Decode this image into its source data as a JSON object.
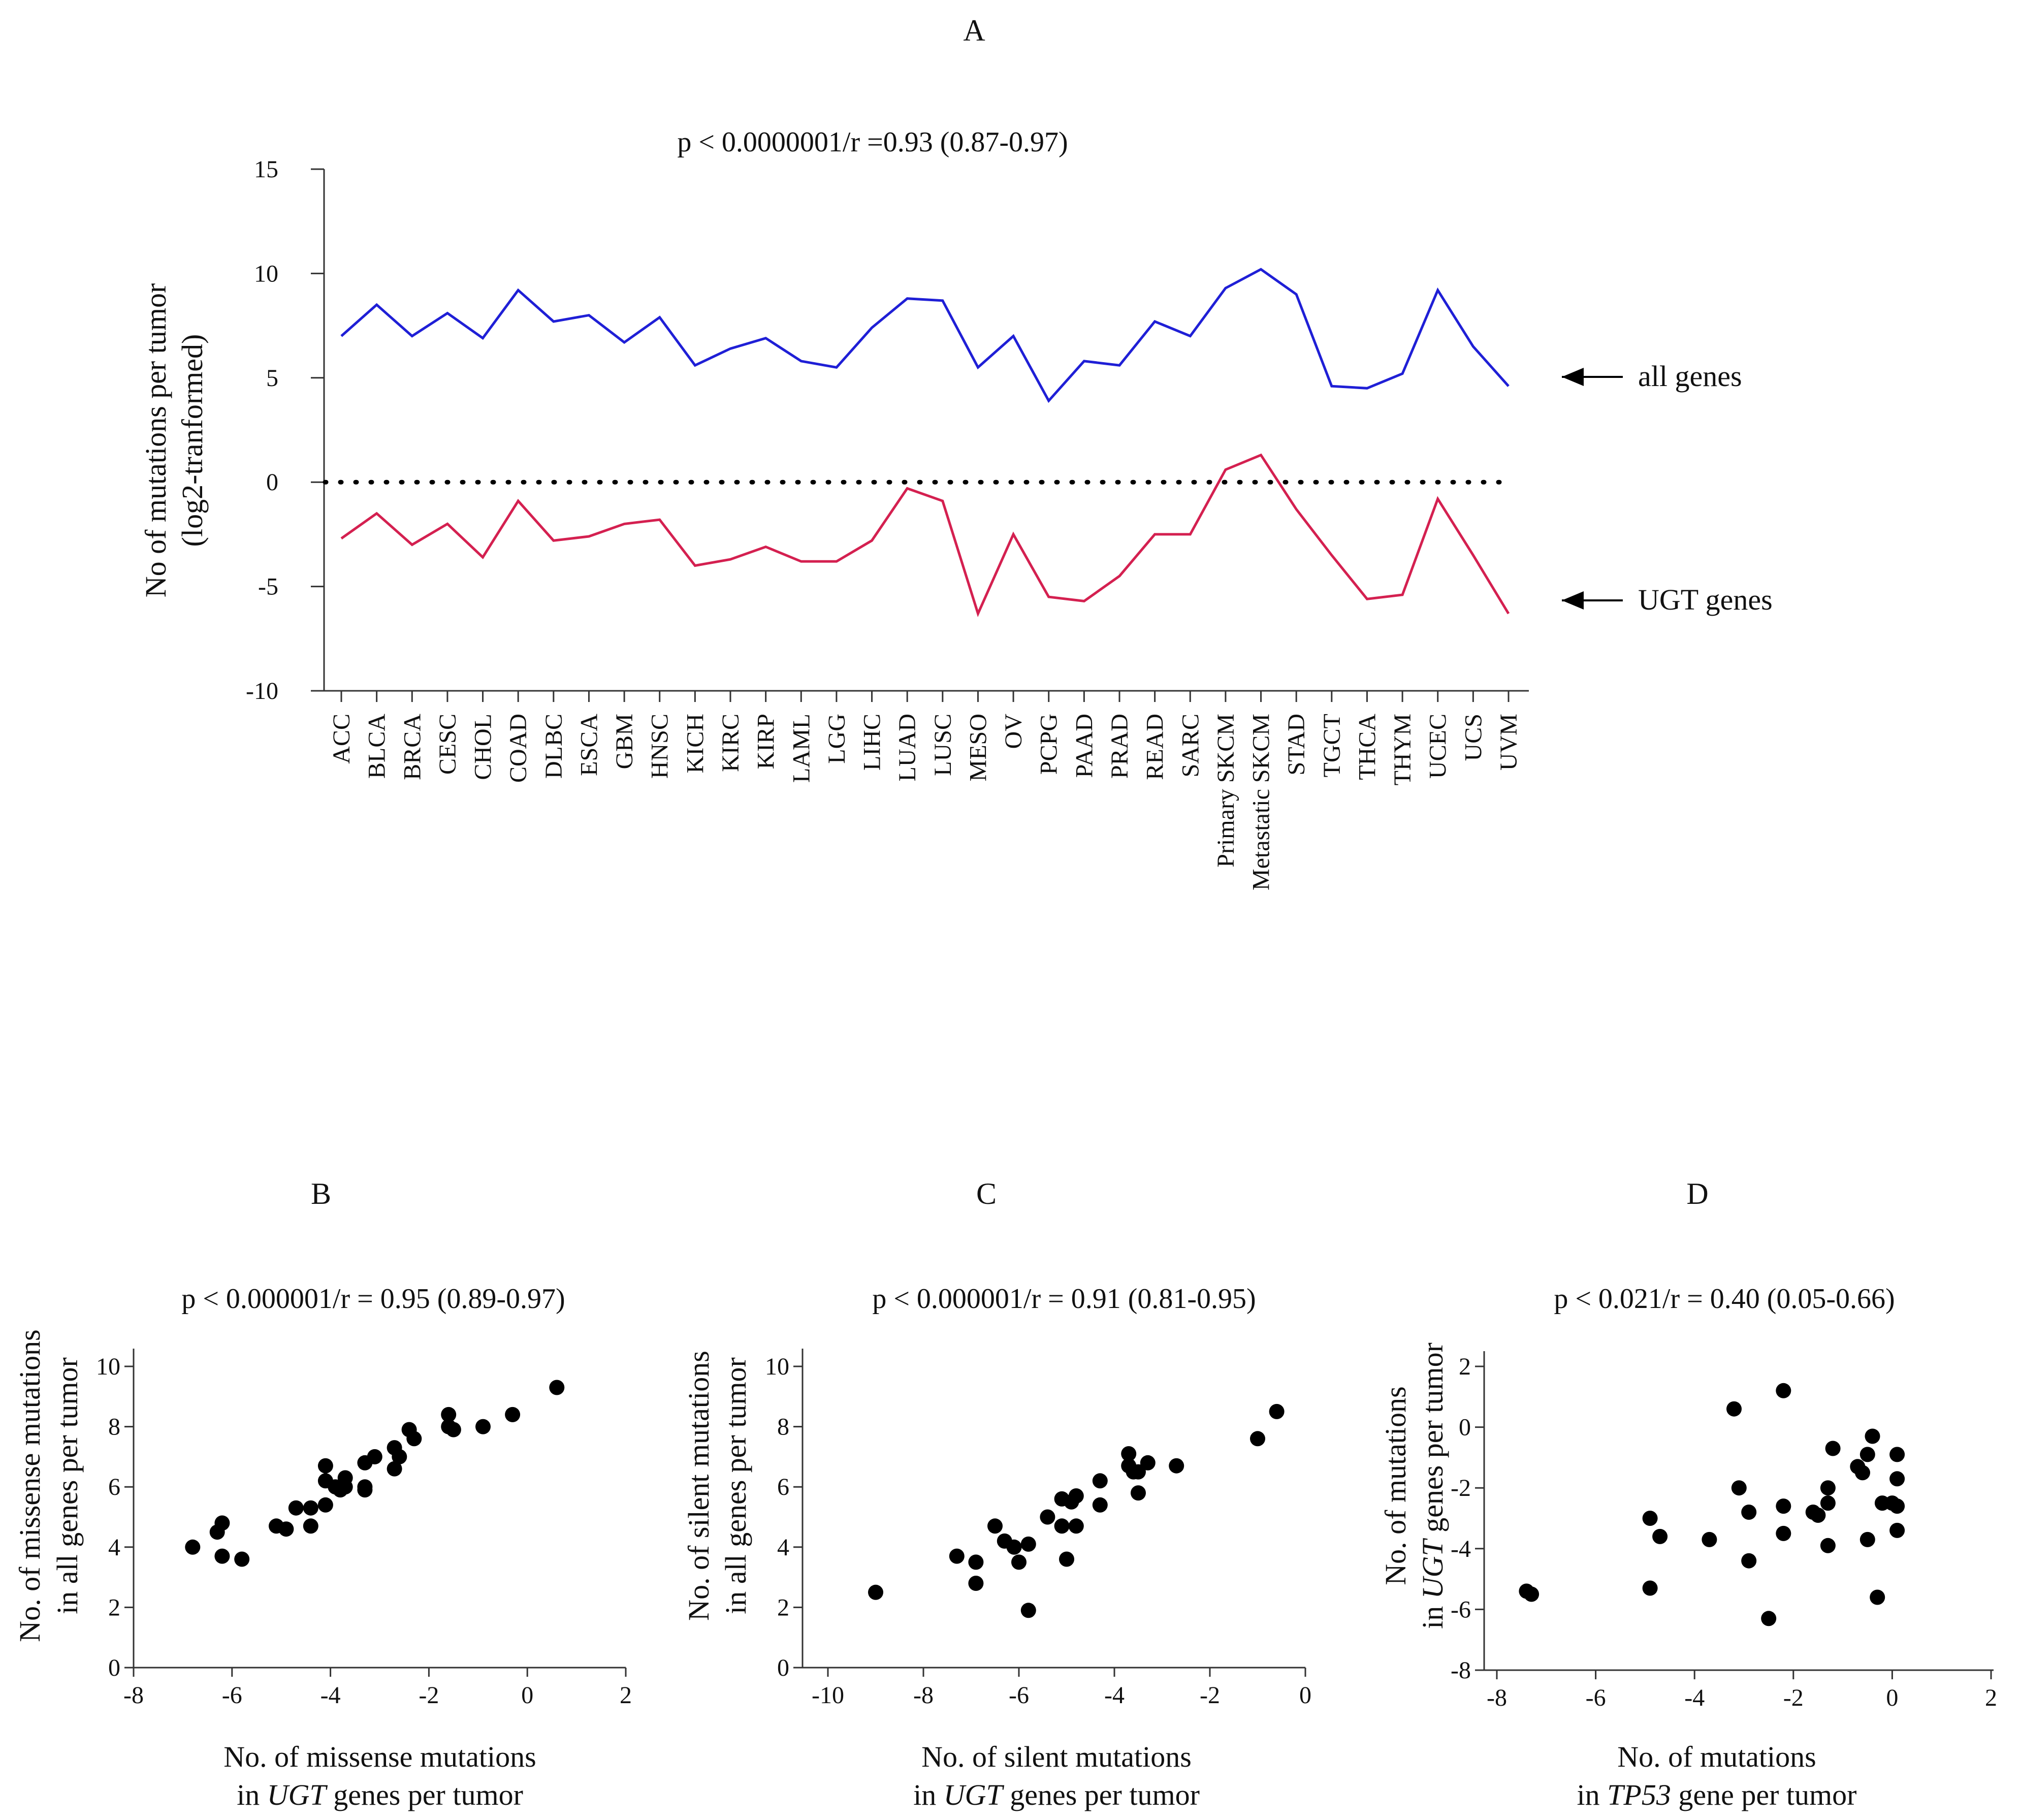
{
  "chart_data": [
    {
      "panel": "A",
      "type": "line",
      "title": "p < 0.0000001/r =0.93 (0.87-0.97)",
      "ylabel": [
        "No of mutations per tumor",
        "(log2-tranformed)"
      ],
      "ylim": [
        -10,
        15
      ],
      "yticks": [
        -10,
        -5,
        0,
        5,
        10,
        15
      ],
      "categories": [
        "ACC",
        "BLCA",
        "BRCA",
        "CESC",
        "CHOL",
        "COAD",
        "DLBC",
        "ESCA",
        "GBM",
        "HNSC",
        "KICH",
        "KIRC",
        "KIRP",
        "LAML",
        "LGG",
        "LIHC",
        "LUAD",
        "LUSC",
        "MESO",
        "OV",
        "PCPG",
        "PAAD",
        "PRAD",
        "READ",
        "SARC",
        "Primary SKCM",
        "Metastatic SKCM",
        "STAD",
        "TGCT",
        "THCA",
        "THYM",
        "UCEC",
        "UCS",
        "UVM"
      ],
      "series": [
        {
          "name": "all genes",
          "color": "#1f1fd6",
          "values": [
            7.0,
            8.5,
            7.0,
            8.1,
            6.9,
            9.2,
            7.7,
            8.0,
            6.7,
            7.9,
            5.6,
            6.4,
            6.9,
            5.8,
            5.5,
            7.4,
            8.8,
            8.7,
            5.5,
            7.0,
            3.9,
            5.8,
            5.6,
            7.7,
            7.0,
            9.3,
            10.2,
            9.0,
            4.6,
            4.5,
            5.2,
            9.2,
            6.5,
            4.6
          ]
        },
        {
          "name": "UGT genes",
          "color": "#d42050",
          "values": [
            -2.7,
            -1.5,
            -3.0,
            -2.0,
            -3.6,
            -0.9,
            -2.8,
            -2.6,
            -2.0,
            -1.8,
            -4.0,
            -3.7,
            -3.1,
            -3.8,
            -3.8,
            -2.8,
            -0.3,
            -0.9,
            -6.3,
            -2.5,
            -5.5,
            -5.7,
            -4.5,
            -2.5,
            -2.5,
            0.6,
            1.3,
            -1.3,
            -3.5,
            -5.6,
            -5.4,
            -0.8,
            -3.5,
            -6.3
          ]
        }
      ],
      "reference_line": 0,
      "annotations": [
        "all genes",
        "UGT genes"
      ]
    },
    {
      "panel": "B",
      "type": "scatter",
      "title": "p < 0.000001/r = 0.95 (0.89-0.97)",
      "xlabel": [
        "No. of missense mutations",
        "in ",
        "UGT",
        " genes per tumor"
      ],
      "ylabel": [
        "No. of missense mutations",
        "in all genes per tumor"
      ],
      "xlim": [
        -8,
        2
      ],
      "ylim": [
        0,
        10
      ],
      "xticks": [
        -8,
        -6,
        -4,
        -2,
        0,
        2
      ],
      "yticks": [
        0,
        2,
        4,
        6,
        8,
        10
      ],
      "points": [
        [
          -6.8,
          4.0
        ],
        [
          -6.3,
          4.5
        ],
        [
          -6.2,
          4.8
        ],
        [
          -6.2,
          3.7
        ],
        [
          -5.8,
          3.6
        ],
        [
          -5.1,
          4.7
        ],
        [
          -4.9,
          4.6
        ],
        [
          -4.7,
          5.3
        ],
        [
          -4.4,
          5.3
        ],
        [
          -4.4,
          4.7
        ],
        [
          -4.1,
          6.7
        ],
        [
          -4.1,
          6.2
        ],
        [
          -4.1,
          5.4
        ],
        [
          -3.9,
          6.0
        ],
        [
          -3.8,
          5.9
        ],
        [
          -3.7,
          6.3
        ],
        [
          -3.7,
          6.0
        ],
        [
          -3.3,
          6.8
        ],
        [
          -3.3,
          6.0
        ],
        [
          -3.3,
          5.9
        ],
        [
          -3.1,
          7.0
        ],
        [
          -2.7,
          7.3
        ],
        [
          -2.7,
          6.6
        ],
        [
          -2.6,
          7.0
        ],
        [
          -2.4,
          7.9
        ],
        [
          -2.3,
          7.6
        ],
        [
          -1.6,
          8.4
        ],
        [
          -1.6,
          8.0
        ],
        [
          -1.5,
          7.9
        ],
        [
          -0.9,
          8.0
        ],
        [
          -0.3,
          8.4
        ],
        [
          0.6,
          9.3
        ]
      ]
    },
    {
      "panel": "C",
      "type": "scatter",
      "title": "p < 0.000001/r = 0.91 (0.81-0.95)",
      "xlabel": [
        "No. of silent mutations",
        "in ",
        "UGT",
        " genes per tumor"
      ],
      "ylabel": [
        "No. of silent mutations",
        "in all genes per tumor"
      ],
      "xlim": [
        -10,
        0
      ],
      "ylim": [
        0,
        10
      ],
      "xticks": [
        -10,
        -8,
        -6,
        -4,
        -2,
        0
      ],
      "yticks": [
        0,
        2,
        4,
        6,
        8,
        10
      ],
      "points": [
        [
          -9.0,
          2.5
        ],
        [
          -7.3,
          3.7
        ],
        [
          -6.9,
          3.5
        ],
        [
          -6.9,
          2.8
        ],
        [
          -6.5,
          4.7
        ],
        [
          -6.3,
          4.2
        ],
        [
          -6.1,
          4.0
        ],
        [
          -6.0,
          3.5
        ],
        [
          -5.8,
          4.1
        ],
        [
          -5.8,
          1.9
        ],
        [
          -5.4,
          5.0
        ],
        [
          -5.1,
          5.6
        ],
        [
          -5.1,
          4.7
        ],
        [
          -5.0,
          3.6
        ],
        [
          -4.9,
          5.5
        ],
        [
          -4.8,
          5.7
        ],
        [
          -4.8,
          4.7
        ],
        [
          -4.3,
          6.2
        ],
        [
          -4.3,
          5.4
        ],
        [
          -3.7,
          7.1
        ],
        [
          -3.7,
          6.7
        ],
        [
          -3.6,
          6.5
        ],
        [
          -3.5,
          6.5
        ],
        [
          -3.5,
          5.8
        ],
        [
          -3.3,
          6.8
        ],
        [
          -2.7,
          6.7
        ],
        [
          -1.0,
          7.6
        ],
        [
          -0.6,
          8.5
        ]
      ]
    },
    {
      "panel": "D",
      "type": "scatter",
      "title": "p < 0.021/r = 0.40 (0.05-0.66)",
      "xlabel": [
        "No. of mutations",
        "in ",
        "TP53",
        " gene per tumor"
      ],
      "ylabel": [
        "No. of mutations",
        "in ",
        "UGT",
        " genes per tumor"
      ],
      "xlim": [
        -8,
        2
      ],
      "ylim": [
        -8,
        2
      ],
      "xticks": [
        -8,
        -6,
        -4,
        -2,
        0,
        2
      ],
      "yticks": [
        -8,
        -6,
        -4,
        -2,
        0,
        2
      ],
      "points": [
        [
          -7.4,
          -5.4
        ],
        [
          -7.3,
          -5.5
        ],
        [
          -4.9,
          -3.0
        ],
        [
          -4.9,
          -5.3
        ],
        [
          -4.7,
          -3.6
        ],
        [
          -3.7,
          -3.7
        ],
        [
          -3.2,
          0.6
        ],
        [
          -3.1,
          -2.0
        ],
        [
          -2.9,
          -2.8
        ],
        [
          -2.9,
          -4.4
        ],
        [
          -2.5,
          -6.3
        ],
        [
          -2.2,
          1.2
        ],
        [
          -2.2,
          -2.6
        ],
        [
          -2.2,
          -3.5
        ],
        [
          -1.6,
          -2.8
        ],
        [
          -1.5,
          -2.9
        ],
        [
          -1.3,
          -2.0
        ],
        [
          -1.3,
          -2.5
        ],
        [
          -1.3,
          -3.9
        ],
        [
          -1.2,
          -0.7
        ],
        [
          -0.7,
          -1.3
        ],
        [
          -0.6,
          -1.5
        ],
        [
          -0.5,
          -0.9
        ],
        [
          -0.5,
          -3.7
        ],
        [
          -0.4,
          -0.3
        ],
        [
          -0.3,
          -5.6
        ],
        [
          -0.2,
          -2.5
        ],
        [
          0.0,
          -2.5
        ],
        [
          0.1,
          -0.9
        ],
        [
          0.1,
          -1.7
        ],
        [
          0.1,
          -2.6
        ],
        [
          0.1,
          -3.4
        ]
      ]
    }
  ]
}
